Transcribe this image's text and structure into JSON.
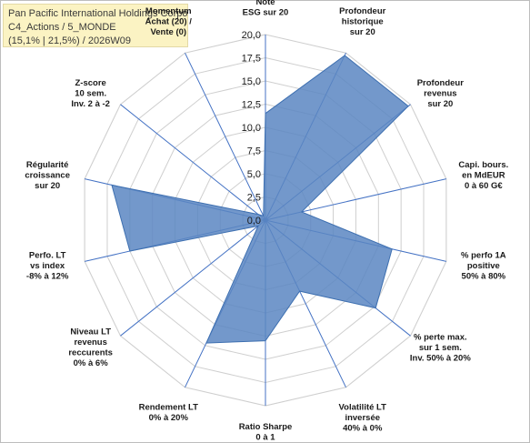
{
  "header": {
    "title_line1": "Pan Pacific International Holdings Corpo",
    "title_line2": "C4_Actions / 5_MONDE",
    "title_line3": "(15,1% | 21,5%) / 2026W09"
  },
  "chart_data": {
    "type": "radar",
    "title": "",
    "rlim": [
      0,
      20
    ],
    "ticks": [
      "0,0",
      "2,5",
      "5,0",
      "7,5",
      "10,0",
      "12,5",
      "15,0",
      "17,5",
      "20,0"
    ],
    "tick_values": [
      0,
      2.5,
      5,
      7.5,
      10,
      12.5,
      15,
      17.5,
      20
    ],
    "grid": true,
    "axes": [
      {
        "lines": [
          "Note",
          "ESG sur 20"
        ],
        "value": 11.5
      },
      {
        "lines": [
          "Profondeur",
          "historique",
          "sur 20"
        ],
        "value": 19.7
      },
      {
        "lines": [
          "Profondeur",
          "revenus",
          "sur 20"
        ],
        "value": 19.7
      },
      {
        "lines": [
          "Capi. bours.",
          "en MdEUR",
          "0 à 60 G€"
        ],
        "value": 4.0
      },
      {
        "lines": [
          "% perfo 1A",
          "positive",
          "50% à 80%"
        ],
        "value": 14.0
      },
      {
        "lines": [
          "% perte max.",
          "sur 1 sem.",
          "Inv. 50% à 20%"
        ],
        "value": 15.2
      },
      {
        "lines": [
          "Volatilité LT",
          "inversée",
          "40% à 0%"
        ],
        "value": 8.5
      },
      {
        "lines": [
          "Ratio Sharpe",
          "0 à 1"
        ],
        "value": 13.0
      },
      {
        "lines": [
          "Rendement LT",
          "0% à 20%"
        ],
        "value": 14.7
      },
      {
        "lines": [
          "Niveau LT",
          "revenus",
          "reccurents",
          "0% à 6%"
        ],
        "value": 1.0
      },
      {
        "lines": [
          "Perfo. LT",
          "vs index",
          "-8% à 12%"
        ],
        "value": 15.0
      },
      {
        "lines": [
          "Régularité",
          "croissance",
          "sur 20"
        ],
        "value": 17.0
      },
      {
        "lines": [
          "Z-score",
          "10 sem.",
          "Inv. 2 à -2"
        ],
        "value": 1.0
      },
      {
        "lines": [
          "Momentum",
          "Achat (20) /",
          "Vente (0)"
        ],
        "value": 0.5
      }
    ],
    "colors": {
      "fill": "#5b86c2",
      "fill_opacity": 0.85,
      "stroke": "#3d6fb0",
      "axis_line": "#4472c4",
      "grid": "#cfcfcf",
      "momentum_label": "#b5b5b5"
    }
  }
}
